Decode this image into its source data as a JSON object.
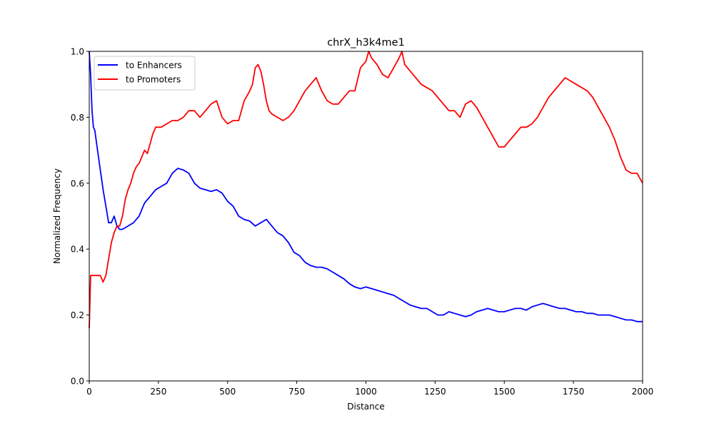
{
  "chart_data": {
    "type": "line",
    "title": "chrX_h3k4me1",
    "xlabel": "Distance",
    "ylabel": "Normalized Frequency",
    "xlim": [
      0,
      2000
    ],
    "ylim": [
      0,
      1.0
    ],
    "xticks": [
      0,
      250,
      500,
      750,
      1000,
      1250,
      1500,
      1750,
      2000
    ],
    "yticks": [
      0.0,
      0.2,
      0.4,
      0.6,
      0.8,
      1.0
    ],
    "grid": false,
    "legend": "upper left",
    "series": [
      {
        "name": "to Enhancers",
        "color": "#0000ff",
        "x": [
          0,
          5,
          10,
          15,
          20,
          30,
          40,
          50,
          60,
          70,
          80,
          90,
          100,
          110,
          120,
          140,
          160,
          170,
          180,
          190,
          200,
          220,
          240,
          260,
          280,
          300,
          320,
          340,
          360,
          380,
          400,
          420,
          440,
          460,
          480,
          500,
          520,
          540,
          560,
          580,
          600,
          620,
          640,
          660,
          680,
          700,
          720,
          740,
          760,
          780,
          800,
          820,
          840,
          860,
          880,
          900,
          920,
          940,
          960,
          980,
          1000,
          1020,
          1040,
          1060,
          1080,
          1100,
          1120,
          1140,
          1160,
          1180,
          1200,
          1220,
          1240,
          1260,
          1280,
          1300,
          1320,
          1340,
          1360,
          1380,
          1400,
          1420,
          1440,
          1460,
          1480,
          1500,
          1520,
          1540,
          1560,
          1580,
          1600,
          1620,
          1640,
          1660,
          1680,
          1700,
          1720,
          1740,
          1760,
          1780,
          1800,
          1820,
          1840,
          1860,
          1880,
          1900,
          1920,
          1940,
          1960,
          1980,
          2000
        ],
        "values": [
          1.0,
          0.93,
          0.82,
          0.77,
          0.76,
          0.7,
          0.64,
          0.58,
          0.53,
          0.48,
          0.48,
          0.5,
          0.47,
          0.46,
          0.46,
          0.47,
          0.48,
          0.49,
          0.5,
          0.52,
          0.54,
          0.56,
          0.58,
          0.59,
          0.6,
          0.63,
          0.645,
          0.64,
          0.63,
          0.6,
          0.585,
          0.58,
          0.575,
          0.58,
          0.57,
          0.545,
          0.53,
          0.5,
          0.49,
          0.485,
          0.47,
          0.48,
          0.49,
          0.47,
          0.45,
          0.44,
          0.42,
          0.39,
          0.38,
          0.36,
          0.35,
          0.345,
          0.345,
          0.34,
          0.33,
          0.32,
          0.31,
          0.295,
          0.285,
          0.28,
          0.285,
          0.28,
          0.275,
          0.27,
          0.265,
          0.26,
          0.25,
          0.24,
          0.23,
          0.225,
          0.22,
          0.22,
          0.21,
          0.2,
          0.2,
          0.21,
          0.205,
          0.2,
          0.195,
          0.2,
          0.21,
          0.215,
          0.22,
          0.215,
          0.21,
          0.21,
          0.215,
          0.22,
          0.22,
          0.215,
          0.225,
          0.23,
          0.235,
          0.23,
          0.225,
          0.22,
          0.22,
          0.215,
          0.21,
          0.21,
          0.205,
          0.205,
          0.2,
          0.2,
          0.2,
          0.195,
          0.19,
          0.185,
          0.185,
          0.18,
          0.18
        ]
      },
      {
        "name": "to Promoters",
        "color": "#ff0000",
        "x": [
          0,
          5,
          10,
          20,
          30,
          40,
          50,
          60,
          70,
          80,
          90,
          100,
          110,
          120,
          130,
          140,
          150,
          160,
          170,
          180,
          190,
          200,
          210,
          220,
          230,
          240,
          250,
          260,
          280,
          300,
          320,
          340,
          360,
          380,
          400,
          420,
          440,
          460,
          480,
          500,
          520,
          540,
          560,
          580,
          590,
          600,
          610,
          620,
          630,
          640,
          650,
          660,
          680,
          700,
          720,
          740,
          760,
          780,
          800,
          820,
          840,
          860,
          880,
          900,
          920,
          940,
          960,
          980,
          1000,
          1010,
          1020,
          1040,
          1060,
          1080,
          1100,
          1120,
          1130,
          1140,
          1160,
          1180,
          1200,
          1220,
          1240,
          1260,
          1280,
          1300,
          1320,
          1340,
          1360,
          1380,
          1400,
          1420,
          1440,
          1460,
          1480,
          1500,
          1520,
          1540,
          1560,
          1580,
          1600,
          1620,
          1640,
          1660,
          1680,
          1700,
          1720,
          1740,
          1760,
          1780,
          1800,
          1820,
          1840,
          1860,
          1880,
          1900,
          1920,
          1940,
          1960,
          1980,
          2000
        ],
        "values": [
          0.16,
          0.32,
          0.32,
          0.32,
          0.32,
          0.32,
          0.3,
          0.32,
          0.37,
          0.42,
          0.45,
          0.47,
          0.47,
          0.5,
          0.55,
          0.58,
          0.6,
          0.63,
          0.65,
          0.66,
          0.68,
          0.7,
          0.69,
          0.72,
          0.75,
          0.77,
          0.77,
          0.77,
          0.78,
          0.79,
          0.79,
          0.8,
          0.82,
          0.82,
          0.8,
          0.82,
          0.84,
          0.85,
          0.8,
          0.78,
          0.79,
          0.79,
          0.85,
          0.88,
          0.9,
          0.95,
          0.96,
          0.94,
          0.9,
          0.85,
          0.82,
          0.81,
          0.8,
          0.79,
          0.8,
          0.82,
          0.85,
          0.88,
          0.9,
          0.92,
          0.88,
          0.85,
          0.84,
          0.84,
          0.86,
          0.88,
          0.88,
          0.95,
          0.97,
          1.0,
          0.98,
          0.96,
          0.93,
          0.92,
          0.95,
          0.98,
          1.0,
          0.96,
          0.94,
          0.92,
          0.9,
          0.89,
          0.88,
          0.86,
          0.84,
          0.82,
          0.82,
          0.8,
          0.84,
          0.85,
          0.83,
          0.8,
          0.77,
          0.74,
          0.71,
          0.71,
          0.73,
          0.75,
          0.77,
          0.77,
          0.78,
          0.8,
          0.83,
          0.86,
          0.88,
          0.9,
          0.92,
          0.91,
          0.9,
          0.89,
          0.88,
          0.86,
          0.83,
          0.8,
          0.77,
          0.73,
          0.68,
          0.64,
          0.63,
          0.63,
          0.6
        ]
      }
    ]
  }
}
